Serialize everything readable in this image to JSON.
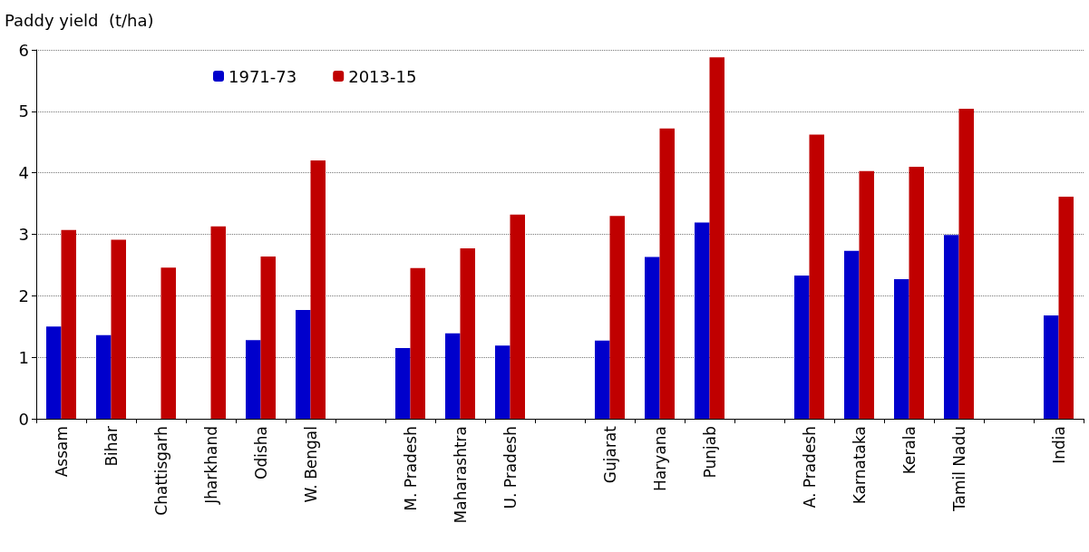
{
  "chart_data": {
    "type": "bar",
    "ylabel": "Paddy yield  (t/ha)",
    "categories": [
      "Assam",
      "Bihar",
      "Chattisgarh",
      "Jharkhand",
      "Odisha",
      "W. Bengal",
      null,
      "M. Pradesh",
      "Maharashtra",
      "U. Pradesh",
      null,
      "Gujarat",
      "Haryana",
      "Punjab",
      null,
      "A. Pradesh",
      "Karnataka",
      "Kerala",
      "Tamil Nadu",
      null,
      "India"
    ],
    "series": [
      {
        "name": "1971-73",
        "color": "#0000cc",
        "values": [
          1.5,
          1.36,
          null,
          null,
          1.28,
          1.77,
          null,
          1.15,
          1.39,
          1.19,
          null,
          1.27,
          2.63,
          3.19,
          null,
          2.33,
          2.73,
          2.27,
          2.99,
          null,
          1.68
        ]
      },
      {
        "name": "2013-15",
        "color": "#c00000",
        "values": [
          3.07,
          2.91,
          2.46,
          3.13,
          2.64,
          4.2,
          null,
          2.45,
          2.77,
          3.32,
          null,
          3.3,
          4.72,
          5.88,
          null,
          4.62,
          4.03,
          4.1,
          5.04,
          null,
          3.61
        ]
      }
    ],
    "ylim": [
      0,
      6
    ],
    "yticks": [
      0,
      1,
      2,
      3,
      4,
      5,
      6
    ],
    "grid": "y",
    "legend": "top left",
    "line_style": "dotted"
  }
}
